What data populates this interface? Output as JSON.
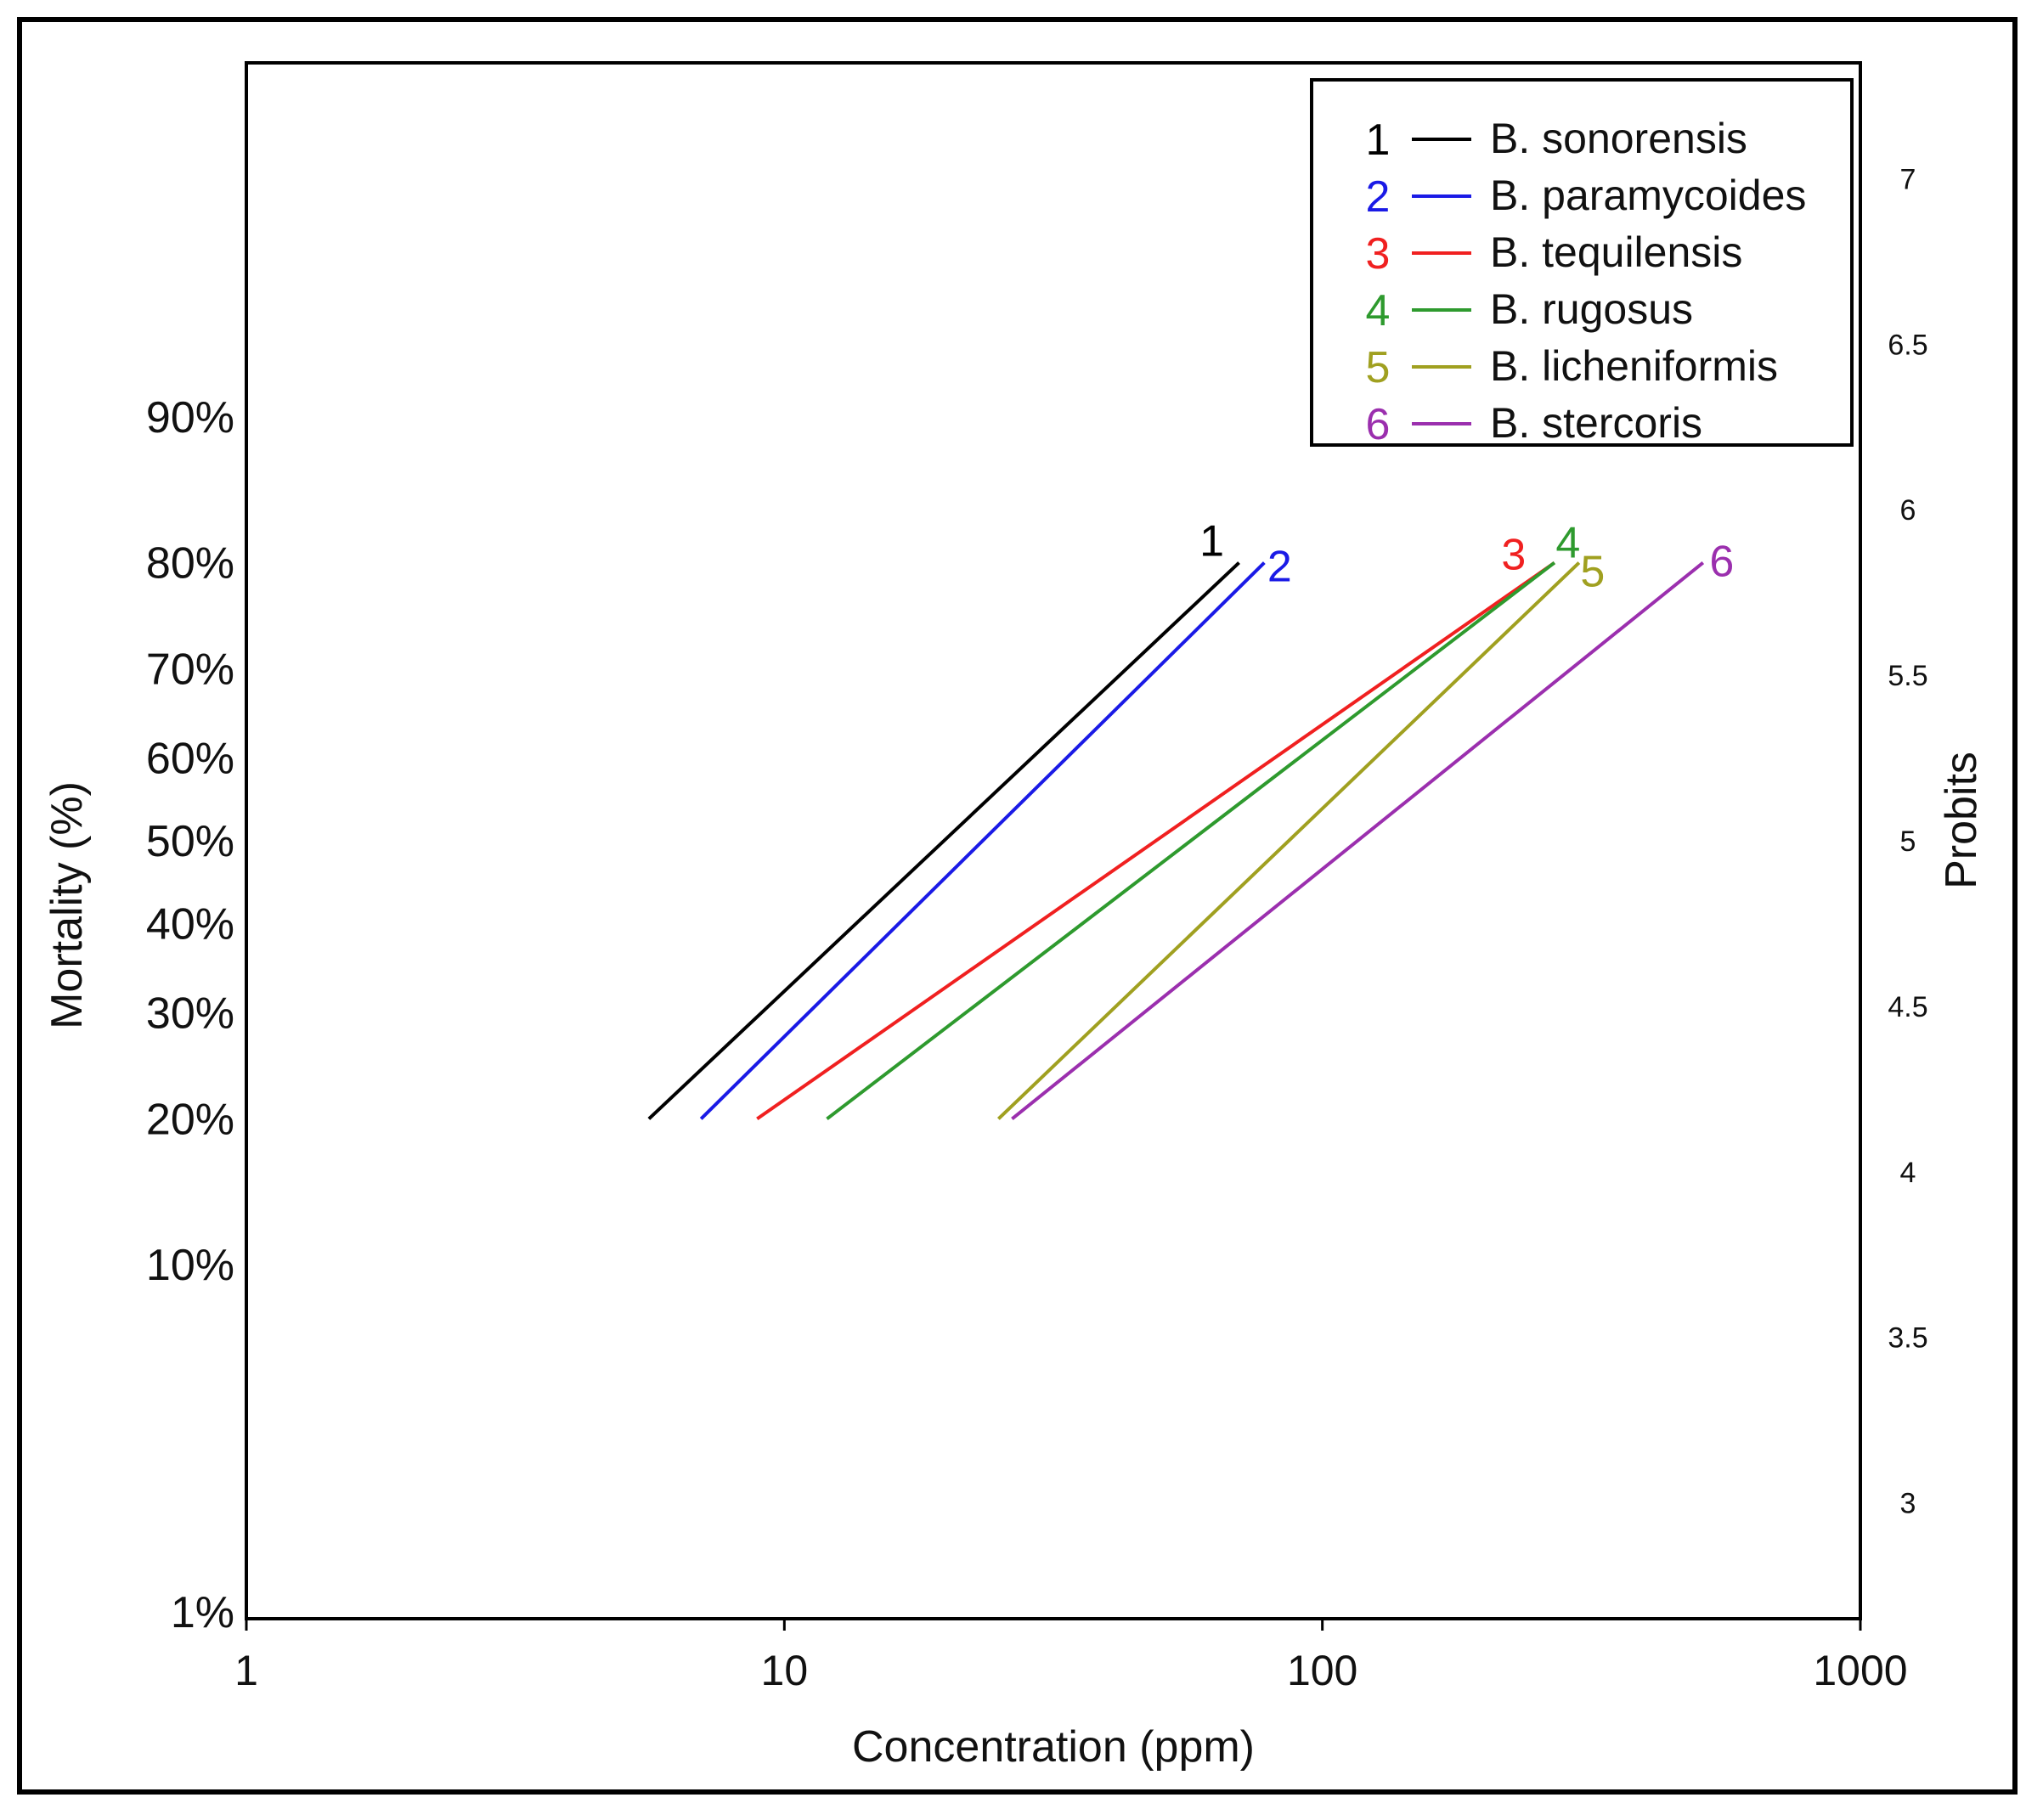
{
  "chart_data": {
    "type": "line",
    "title": "",
    "xlabel": "Concentration (ppm)",
    "ylabel": "Mortality (%)",
    "y2label": "Probits",
    "xscale": "log",
    "xlim": [
      1,
      1000
    ],
    "probit_range": [
      2.65,
      7.35
    ],
    "x_ticks": [
      "1",
      "10",
      "100",
      "1000"
    ],
    "mortality_ticks": [
      {
        "label": "1%",
        "probit": 2.67
      },
      {
        "label": "10%",
        "probit": 3.72
      },
      {
        "label": "20%",
        "probit": 4.16
      },
      {
        "label": "30%",
        "probit": 4.48
      },
      {
        "label": "40%",
        "probit": 4.75
      },
      {
        "label": "50%",
        "probit": 5.0
      },
      {
        "label": "60%",
        "probit": 5.25
      },
      {
        "label": "70%",
        "probit": 5.52
      },
      {
        "label": "80%",
        "probit": 5.84
      },
      {
        "label": "90%",
        "probit": 6.28
      }
    ],
    "probit_ticks": [
      "3",
      "3.5",
      "4",
      "4.5",
      "5",
      "5.5",
      "6",
      "6.5",
      "7"
    ],
    "legend_position": "top-right",
    "series": [
      {
        "id": "1",
        "name": "B. sonorensis",
        "color": "#000000",
        "x": [
          5.6,
          70
        ],
        "probit": [
          4.16,
          5.84
        ]
      },
      {
        "id": "2",
        "name": "B. paramycoides",
        "color": "#1a1ae6",
        "x": [
          7.0,
          78
        ],
        "probit": [
          4.16,
          5.84
        ]
      },
      {
        "id": "3",
        "name": "B. tequilensis",
        "color": "#f02020",
        "x": [
          8.9,
          270
        ],
        "probit": [
          4.16,
          5.84
        ]
      },
      {
        "id": "4",
        "name": "B. rugosus",
        "color": "#2e9a2e",
        "x": [
          12.0,
          270
        ],
        "probit": [
          4.16,
          5.84
        ]
      },
      {
        "id": "5",
        "name": "B. licheniformis",
        "color": "#a0a020",
        "x": [
          25.0,
          300
        ],
        "probit": [
          4.16,
          5.84
        ]
      },
      {
        "id": "6",
        "name": "B. stercoris",
        "color": "#9b2fae",
        "x": [
          26.5,
          510
        ],
        "probit": [
          4.16,
          5.84
        ]
      }
    ]
  }
}
